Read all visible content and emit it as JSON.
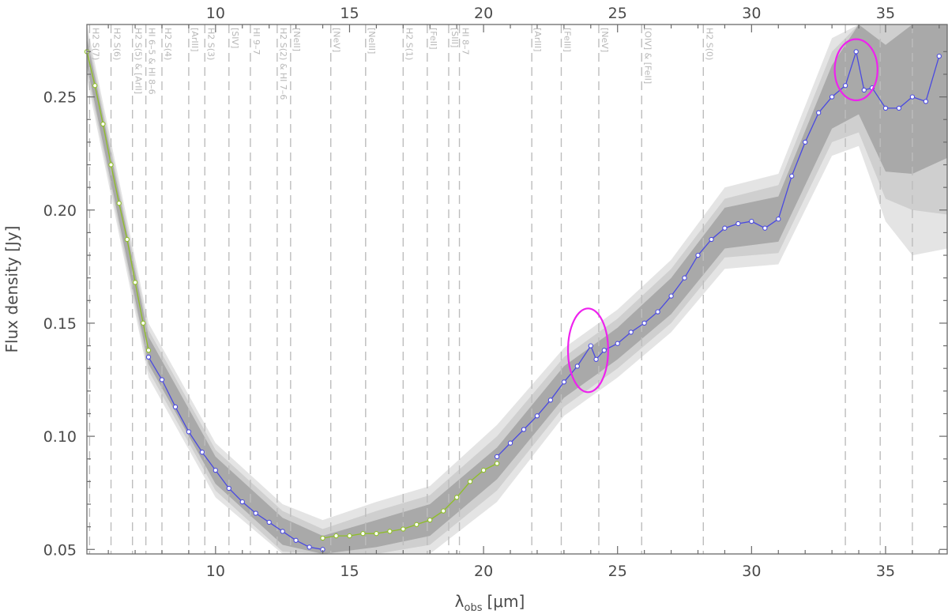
{
  "chart_data": {
    "type": "line",
    "title": "",
    "xlabel": {
      "base": "λ",
      "sub": "obs",
      "unit": "[μm]"
    },
    "ylabel": "Flux density [Jy]",
    "xlim": [
      5.2,
      37.3
    ],
    "ylim": [
      0.048,
      0.282
    ],
    "x_ticks": [
      10,
      15,
      20,
      25,
      30,
      35
    ],
    "y_ticks": [
      0.05,
      0.1,
      0.15,
      0.2,
      0.25
    ],
    "x_tick_labels": [
      "10",
      "15",
      "20",
      "25",
      "30",
      "35"
    ],
    "y_tick_labels": [
      "0.05",
      "0.10",
      "0.15",
      "0.20",
      "0.25"
    ],
    "grid": false,
    "colors": {
      "green": "#8fbf26",
      "blue": "#4a4ae0",
      "uncertainty_outer": "#e4e4e4",
      "uncertainty_mid": "#cfcfcf",
      "uncertainty_inner": "#a9a9a9",
      "highlight": "#ee22ee",
      "line_markers": "#bdbdbd"
    },
    "segments": [
      {
        "color": "green",
        "x": [
          5.2,
          5.5,
          5.8,
          6.1,
          6.4,
          6.7,
          7.0,
          7.3,
          7.5
        ],
        "y": [
          0.27,
          0.255,
          0.238,
          0.22,
          0.203,
          0.187,
          0.168,
          0.15,
          0.138
        ]
      },
      {
        "color": "blue",
        "x": [
          7.5,
          8.0,
          8.5,
          9.0,
          9.5,
          10.0,
          10.5,
          11.0,
          11.5,
          12.0,
          12.5,
          13.0,
          13.5,
          14.0
        ],
        "y": [
          0.135,
          0.125,
          0.113,
          0.102,
          0.093,
          0.085,
          0.077,
          0.071,
          0.066,
          0.062,
          0.058,
          0.054,
          0.051,
          0.05
        ]
      },
      {
        "color": "green",
        "x": [
          14.0,
          14.5,
          15.0,
          15.5,
          16.0,
          16.5,
          17.0,
          17.5,
          18.0,
          18.5,
          19.0,
          19.5,
          20.0,
          20.5
        ],
        "y": [
          0.055,
          0.056,
          0.056,
          0.057,
          0.057,
          0.058,
          0.059,
          0.061,
          0.063,
          0.067,
          0.073,
          0.08,
          0.085,
          0.088
        ]
      },
      {
        "color": "blue",
        "x": [
          20.5,
          21.0,
          21.5,
          22.0,
          22.5,
          23.0,
          23.5,
          24.0,
          24.2,
          24.5,
          25.0,
          25.5,
          26.0,
          26.5,
          27.0,
          27.5,
          28.0,
          28.5,
          29.0,
          29.5,
          30.0,
          30.5,
          31.0,
          31.5,
          32.0,
          32.5,
          33.0,
          33.5,
          33.9,
          34.2,
          34.5,
          35.0,
          35.5,
          36.0,
          36.5,
          37.0
        ],
        "y": [
          0.091,
          0.097,
          0.103,
          0.109,
          0.116,
          0.124,
          0.131,
          0.14,
          0.134,
          0.138,
          0.141,
          0.146,
          0.15,
          0.155,
          0.162,
          0.17,
          0.18,
          0.187,
          0.192,
          0.194,
          0.195,
          0.192,
          0.196,
          0.215,
          0.23,
          0.243,
          0.25,
          0.255,
          0.27,
          0.253,
          0.254,
          0.245,
          0.245,
          0.25,
          0.248,
          0.268
        ]
      }
    ],
    "uncertainty": {
      "x": [
        5.2,
        7.5,
        10.0,
        12.5,
        14.0,
        16.0,
        18.0,
        20.5,
        23.0,
        25.0,
        27.0,
        29.0,
        31.0,
        33.0,
        34.0,
        35.0,
        36.0,
        37.3
      ],
      "inner": [
        0.006,
        0.006,
        0.006,
        0.006,
        0.006,
        0.006,
        0.007,
        0.007,
        0.007,
        0.007,
        0.008,
        0.009,
        0.01,
        0.014,
        0.022,
        0.028,
        0.034,
        0.045
      ],
      "mid": [
        0.009,
        0.009,
        0.009,
        0.009,
        0.009,
        0.01,
        0.011,
        0.012,
        0.011,
        0.011,
        0.012,
        0.013,
        0.015,
        0.02,
        0.03,
        0.04,
        0.05,
        0.07
      ],
      "outer": [
        0.012,
        0.012,
        0.012,
        0.012,
        0.013,
        0.014,
        0.015,
        0.017,
        0.015,
        0.015,
        0.016,
        0.018,
        0.02,
        0.026,
        0.036,
        0.05,
        0.07,
        0.085
      ]
    },
    "line_markers": [
      {
        "x": 5.3,
        "label": "H2 S(7)"
      },
      {
        "x": 6.1,
        "label": "H2 S(6)"
      },
      {
        "x": 6.9,
        "label": "H2 S(5) & [ArII]"
      },
      {
        "x": 7.4,
        "label": "HI 6–5 & HI 8–6"
      },
      {
        "x": 8.0,
        "label": "H2 S(4)"
      },
      {
        "x": 9.0,
        "label": "[ArIII]"
      },
      {
        "x": 9.6,
        "label": "H2 S(3)"
      },
      {
        "x": 10.5,
        "label": "[SIV]"
      },
      {
        "x": 11.3,
        "label": "HI 9–7"
      },
      {
        "x": 12.3,
        "label": "H2 S(2) & HI 7–6"
      },
      {
        "x": 12.8,
        "label": "[NeII]"
      },
      {
        "x": 14.3,
        "label": "[NeV]"
      },
      {
        "x": 15.6,
        "label": "[NeIII]"
      },
      {
        "x": 17.0,
        "label": "H2 S(1)"
      },
      {
        "x": 17.9,
        "label": "[FeII]"
      },
      {
        "x": 18.7,
        "label": "[SIII]"
      },
      {
        "x": 19.1,
        "label": "HI 8–7"
      },
      {
        "x": 21.8,
        "label": "[ArIII]"
      },
      {
        "x": 22.9,
        "label": "[FeIII]"
      },
      {
        "x": 24.3,
        "label": "[NeV]"
      },
      {
        "x": 25.9,
        "label": "[OIV] & [FeII]"
      },
      {
        "x": 28.2,
        "label": "H2 S(0)"
      },
      {
        "x": 33.5,
        "label": ""
      },
      {
        "x": 34.8,
        "label": ""
      },
      {
        "x": 36.0,
        "label": ""
      }
    ],
    "highlights": [
      {
        "cx": 23.9,
        "cy": 0.138,
        "rx": 0.75,
        "ry": 0.0185
      },
      {
        "cx": 33.9,
        "cy": 0.262,
        "rx": 0.8,
        "ry": 0.0135
      }
    ]
  }
}
